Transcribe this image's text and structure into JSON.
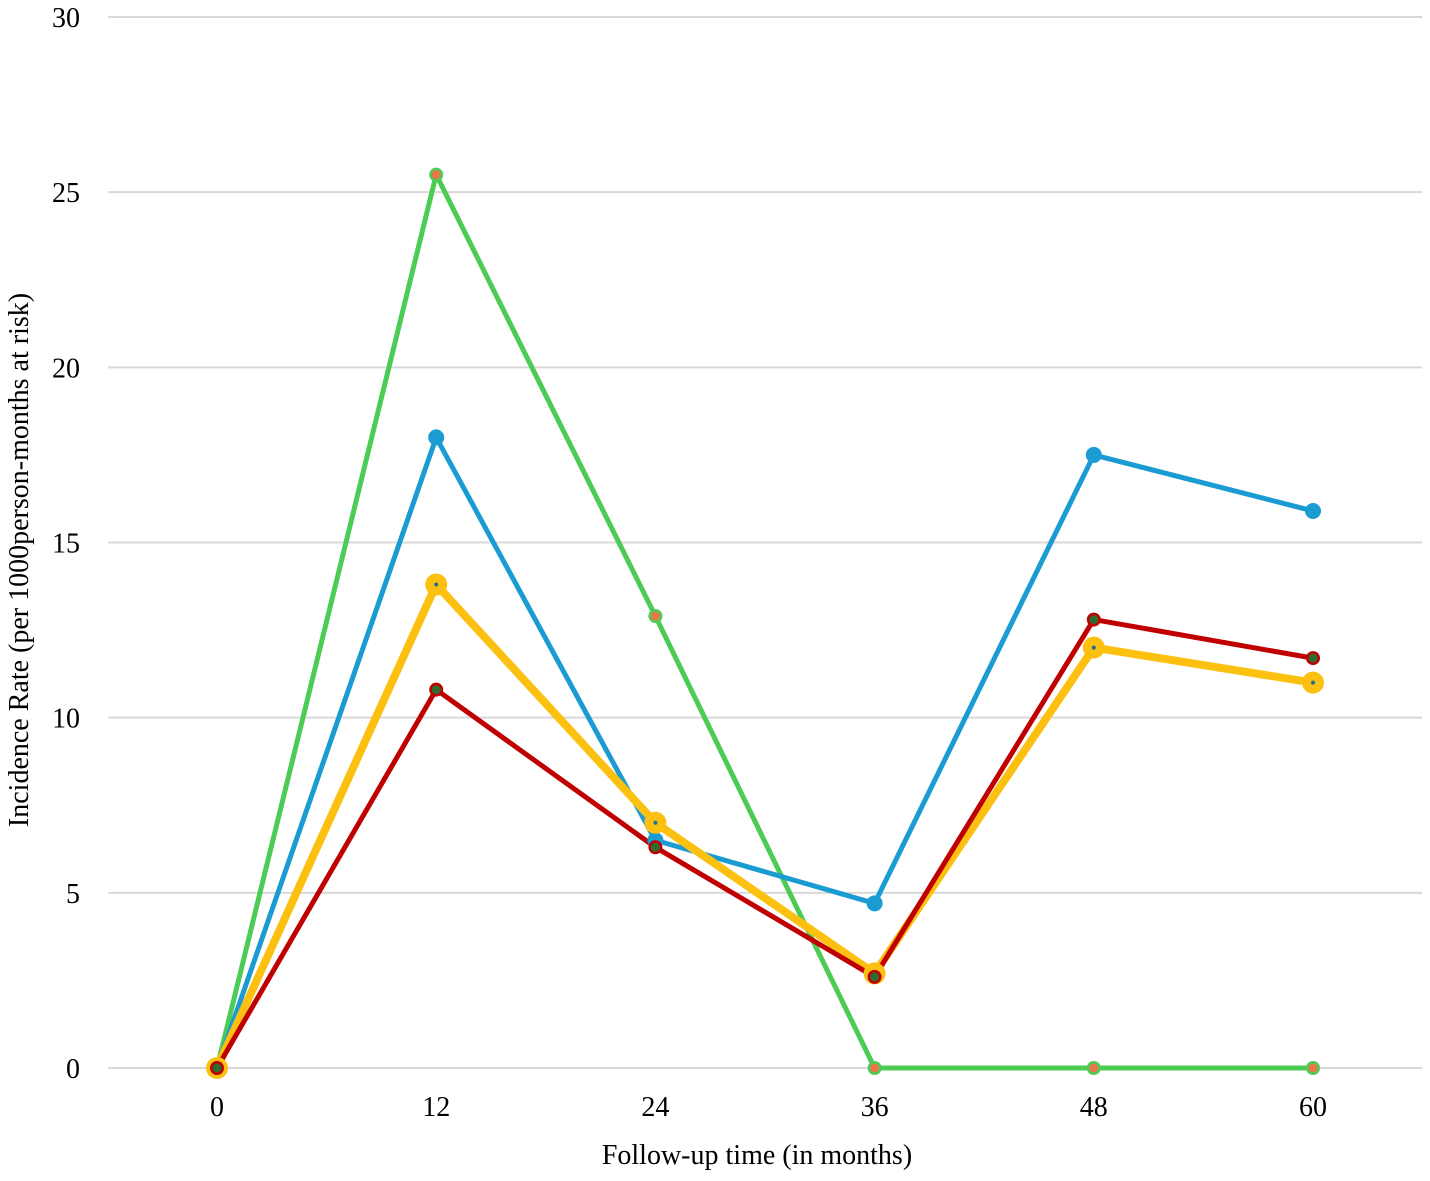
{
  "chart_data": {
    "type": "line",
    "title": "",
    "xlabel": "Follow-up time (in months)",
    "ylabel": "Incidence Rate (per 1000person-months at risk)",
    "x": [
      0,
      12,
      24,
      36,
      48,
      60
    ],
    "x_tick_labels": [
      "0",
      "12",
      "24",
      "36",
      "48",
      "60"
    ],
    "ylim": [
      0,
      30
    ],
    "y_ticks": [
      0,
      5,
      10,
      15,
      20,
      25,
      30
    ],
    "y_tick_labels": [
      "0",
      "5",
      "10",
      "15",
      "20",
      "25",
      "30"
    ],
    "grid": "horizontal",
    "legend": "none",
    "series": [
      {
        "values": [
          0,
          25.5,
          12.9,
          0,
          0,
          0
        ],
        "color": "#4CCB55",
        "marker_color": "#E8784A",
        "line_width": 5,
        "marker_size": 7
      },
      {
        "values": [
          0,
          18.0,
          6.5,
          4.7,
          17.5,
          15.9
        ],
        "color": "#1A9CD3",
        "marker_color": "#1A9CD3",
        "line_width": 5,
        "marker_size": 8
      },
      {
        "values": [
          0,
          13.8,
          7.0,
          2.7,
          12.0,
          11.0
        ],
        "color": "#FCC010",
        "marker_color": "#FCC010",
        "inner_marker_color": "#1E6E8C",
        "line_width": 8,
        "marker_size": 11
      },
      {
        "values": [
          0,
          10.8,
          6.3,
          2.6,
          12.8,
          11.7
        ],
        "color": "#C00000",
        "marker_color": "#C00000",
        "inner_marker_color": "#2E6B2E",
        "line_width": 5,
        "marker_size": 7
      }
    ]
  }
}
